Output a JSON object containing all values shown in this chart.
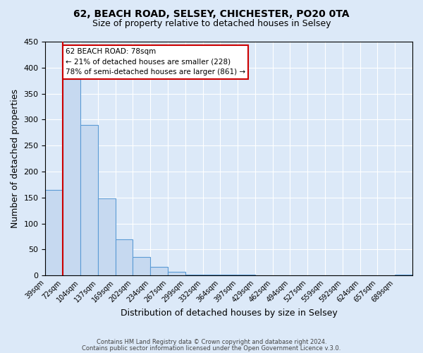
{
  "title1": "62, BEACH ROAD, SELSEY, CHICHESTER, PO20 0TA",
  "title2": "Size of property relative to detached houses in Selsey",
  "xlabel": "Distribution of detached houses by size in Selsey",
  "ylabel": "Number of detached properties",
  "bin_labels": [
    "39sqm",
    "72sqm",
    "104sqm",
    "137sqm",
    "169sqm",
    "202sqm",
    "234sqm",
    "267sqm",
    "299sqm",
    "332sqm",
    "364sqm",
    "397sqm",
    "429sqm",
    "462sqm",
    "494sqm",
    "527sqm",
    "559sqm",
    "592sqm",
    "624sqm",
    "657sqm",
    "689sqm"
  ],
  "bar_heights": [
    165,
    378,
    290,
    148,
    70,
    35,
    16,
    7,
    2,
    2,
    2,
    1,
    0,
    0,
    0,
    0,
    0,
    0,
    0,
    0,
    1
  ],
  "bar_color": "#c6d9f0",
  "bar_edge_color": "#5b9bd5",
  "vline_bin": 1,
  "vline_color": "#cc0000",
  "annotation_title": "62 BEACH ROAD: 78sqm",
  "annotation_line1": "← 21% of detached houses are smaller (228)",
  "annotation_line2": "78% of semi-detached houses are larger (861) →",
  "annotation_box_color": "#ffffff",
  "annotation_box_edge": "#cc0000",
  "ylim": [
    0,
    450
  ],
  "yticks": [
    0,
    50,
    100,
    150,
    200,
    250,
    300,
    350,
    400,
    450
  ],
  "footer1": "Contains HM Land Registry data © Crown copyright and database right 2024.",
  "footer2": "Contains public sector information licensed under the Open Government Licence v.3.0.",
  "background_color": "#dce9f8",
  "plot_bg_color": "#dce9f8",
  "grid_color": "#ffffff"
}
